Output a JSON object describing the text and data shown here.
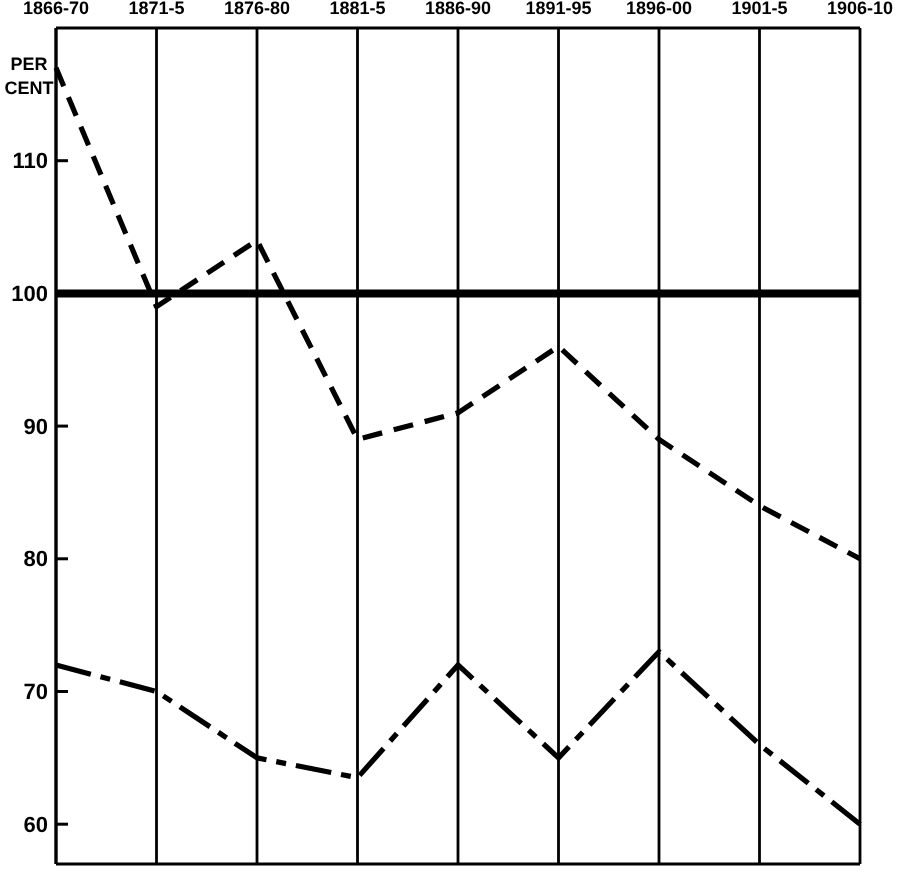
{
  "chart_data": {
    "type": "line",
    "ylabel": "PER CENT",
    "categories": [
      "1866-70",
      "1871-5",
      "1876-80",
      "1881-5",
      "1886-90",
      "1891-95",
      "1896-00",
      "1901-5",
      "1906-10"
    ],
    "series": [
      {
        "color": "#000000",
        "line_style": "dashed",
        "values": [
          117,
          99,
          104,
          89,
          91,
          96,
          89,
          84,
          80
        ]
      },
      {
        "color": "#000000",
        "line_style": "dashdot",
        "values": [
          72,
          70,
          65,
          63.5,
          72,
          65,
          73,
          66,
          60
        ]
      }
    ],
    "ylim": [
      57,
      120
    ],
    "yticks": [
      60,
      70,
      80,
      90,
      100,
      110
    ],
    "grid": "x",
    "marker": "none",
    "ref_lines": [
      {
        "axis": "y",
        "value": 100,
        "color": "#000000"
      }
    ]
  }
}
